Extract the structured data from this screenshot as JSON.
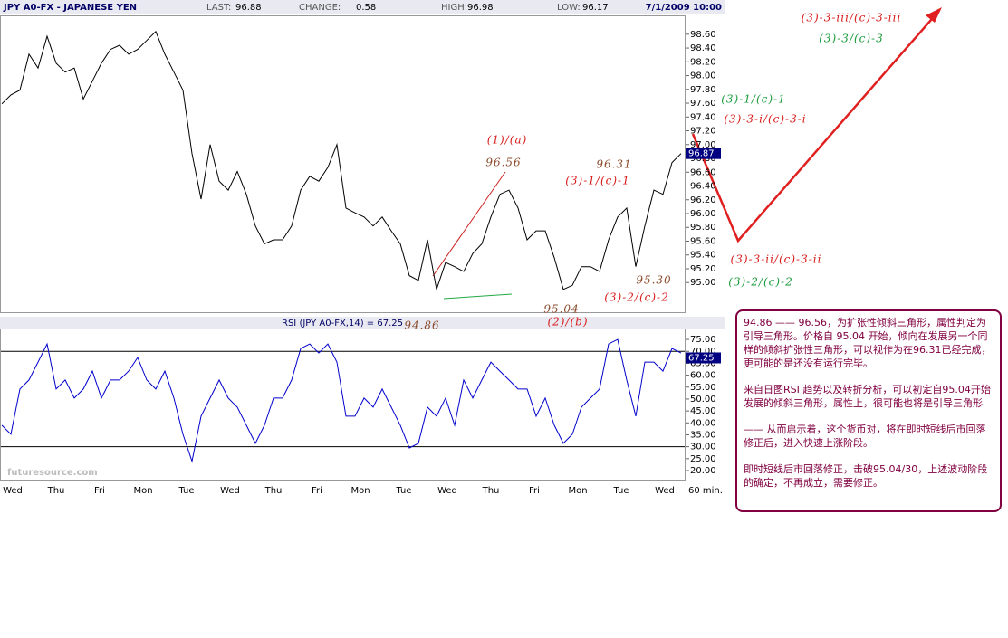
{
  "header": {
    "symbol": "JPY A0-FX - JAPANESE YEN",
    "last_label": "LAST:",
    "last": "96.88",
    "change_label": "CHANGE:",
    "change": "0.58",
    "high_label": "HIGH:",
    "high": "96.98",
    "low_label": "LOW:",
    "low": "96.17",
    "datetime": "7/1/2009 10:00"
  },
  "chart_data": [
    {
      "type": "line",
      "color": "#000000",
      "values": [
        97.59,
        97.72,
        97.79,
        98.31,
        98.11,
        98.57,
        98.18,
        98.05,
        98.11,
        97.66,
        97.92,
        98.18,
        98.38,
        98.44,
        98.31,
        98.38,
        98.51,
        98.64,
        98.31,
        98.05,
        97.79,
        96.87,
        96.21,
        97.0,
        96.47,
        96.34,
        96.61,
        96.28,
        95.82,
        95.56,
        95.62,
        95.62,
        95.82,
        96.34,
        96.54,
        96.47,
        96.67,
        97.0,
        96.08,
        96.01,
        95.95,
        95.82,
        95.95,
        95.75,
        95.56,
        95.1,
        95.03,
        95.62,
        94.9,
        95.29,
        95.23,
        95.16,
        95.42,
        95.56,
        95.95,
        96.28,
        96.34,
        96.08,
        95.62,
        95.75,
        95.75,
        95.36,
        94.9,
        94.96,
        95.23,
        95.23,
        95.16,
        95.62,
        95.95,
        96.08,
        95.23,
        95.82,
        96.34,
        96.28,
        96.74,
        96.87
      ],
      "ylim": [
        94.57,
        98.86
      ],
      "yticks": [
        {
          "value": 95.0,
          "label": "95.00"
        },
        {
          "value": 95.2,
          "label": "95.20"
        },
        {
          "value": 95.4,
          "label": "95.40"
        },
        {
          "value": 95.6,
          "label": "95.60"
        },
        {
          "value": 95.8,
          "label": "95.80"
        },
        {
          "value": 96.0,
          "label": "96.00"
        },
        {
          "value": 96.2,
          "label": "96.20"
        },
        {
          "value": 96.4,
          "label": "96.40"
        },
        {
          "value": 96.6,
          "label": "96.60"
        },
        {
          "value": 96.8,
          "label": "96.80"
        },
        {
          "value": 97.0,
          "label": "97.00"
        },
        {
          "value": 97.2,
          "label": "97.20"
        },
        {
          "value": 97.4,
          "label": "97.40"
        },
        {
          "value": 97.6,
          "label": "97.60"
        },
        {
          "value": 97.8,
          "label": "97.80"
        },
        {
          "value": 98.0,
          "label": "98.00"
        },
        {
          "value": 98.2,
          "label": "98.20"
        },
        {
          "value": 98.4,
          "label": "98.40"
        },
        {
          "value": 98.6,
          "label": "98.60"
        }
      ]
    },
    {
      "type": "line",
      "title": "RSI (JPY A0-FX,14) = 67.25",
      "color": "#0000cc",
      "values": [
        39.0,
        35.2,
        54.2,
        58.0,
        65.5,
        73.1,
        54.2,
        58.0,
        50.4,
        54.2,
        61.7,
        50.4,
        58.0,
        58.0,
        61.7,
        67.4,
        58.0,
        54.2,
        61.7,
        50.4,
        35.2,
        23.9,
        42.8,
        50.4,
        58.0,
        50.4,
        46.6,
        39.0,
        31.4,
        39.0,
        50.4,
        50.4,
        58.0,
        71.2,
        73.1,
        69.3,
        73.1,
        65.5,
        42.8,
        42.8,
        50.4,
        46.6,
        54.2,
        46.6,
        39.0,
        29.5,
        31.4,
        46.6,
        42.8,
        50.4,
        39.0,
        58.0,
        50.4,
        58.0,
        65.5,
        61.7,
        58.0,
        54.2,
        54.2,
        42.8,
        50.4,
        39.0,
        31.4,
        35.2,
        46.6,
        50.4,
        54.2,
        73.1,
        75.0,
        58.0,
        42.8,
        65.5,
        65.5,
        61.7,
        71.2,
        69.3
      ],
      "current": {
        "value": 67.25,
        "label": "67.25"
      },
      "levels": [
        70,
        30
      ],
      "ylim": [
        16.2,
        79.2
      ],
      "yticks": [
        {
          "value": 20,
          "label": "20.00"
        },
        {
          "value": 25,
          "label": "25.00"
        },
        {
          "value": 30,
          "label": "30.00"
        },
        {
          "value": 35,
          "label": "35.00"
        },
        {
          "value": 40,
          "label": "40.00"
        },
        {
          "value": 45,
          "label": "45.00"
        },
        {
          "value": 50,
          "label": "50.00"
        },
        {
          "value": 55,
          "label": "55.00"
        },
        {
          "value": 60,
          "label": "60.00"
        },
        {
          "value": 65,
          "label": "65.00"
        },
        {
          "value": 70,
          "label": "70.00"
        },
        {
          "value": 75,
          "label": "75.00"
        }
      ],
      "x_labels": [
        "Wed",
        "Thu",
        "Fri",
        "Mon",
        "Tue",
        "Wed",
        "Thu",
        "Fri",
        "Mon",
        "Tue",
        "Wed",
        "Thu",
        "Fri",
        "Mon",
        "Tue",
        "Wed"
      ],
      "x_unit": "60 min."
    }
  ],
  "annotations": [
    {
      "text": "(1)/(a)",
      "color": "#d81b1b"
    },
    {
      "text": "96.56",
      "color": "#8b4a2b"
    },
    {
      "text": "96.31",
      "color": "#8b4a2b"
    },
    {
      "text": "(3)-1/(c)-1",
      "color": "#d81b1b"
    },
    {
      "text": "(3)-3-iii/(c)-3-iii",
      "color": "#d81b1b"
    },
    {
      "text": "(3)-3/(c)-3",
      "color": "#1a9a3a"
    },
    {
      "text": "(3)-1/(c)-1",
      "color": "#1a9a3a"
    },
    {
      "text": "(3)-3-i/(c)-3-i",
      "color": "#d81b1b"
    },
    {
      "text": "(3)-3-ii/(c)-3-ii",
      "color": "#d81b1b"
    },
    {
      "text": "(3)-2/(c)-2",
      "color": "#1a9a3a"
    },
    {
      "text": "95.30",
      "color": "#8b4a2b"
    },
    {
      "text": "(3)-2/(c)-2",
      "color": "#d81b1b"
    },
    {
      "text": "95.04",
      "color": "#8b4a2b"
    },
    {
      "text": "(2)/(b)",
      "color": "#d81b1b"
    },
    {
      "text": "94.86",
      "color": "#8b4a2b"
    }
  ],
  "watermark": "futuresource.com",
  "note": [
    "94.86 —— 96.56，为扩张性倾斜三角形，属性判定为引导三角形。价格自 95.04 开始，倾向在发展另一个同样的倾斜扩张性三角形，可以视作为在96.31已经完成，更可能的是还没有运行完毕。",
    "来自日图RSI 趋势以及转折分析，可以初定自95.04开始发展的倾斜三角形，属性上，很可能也将是引导三角形",
    "—— 从而启示着，这个货币对，将在即时短线后市回落修正后，进入快速上涨阶段。",
    "即时短线后市回落修正，击破95.04/30，上述波动阶段的确定，不再成立，需要修正。"
  ]
}
